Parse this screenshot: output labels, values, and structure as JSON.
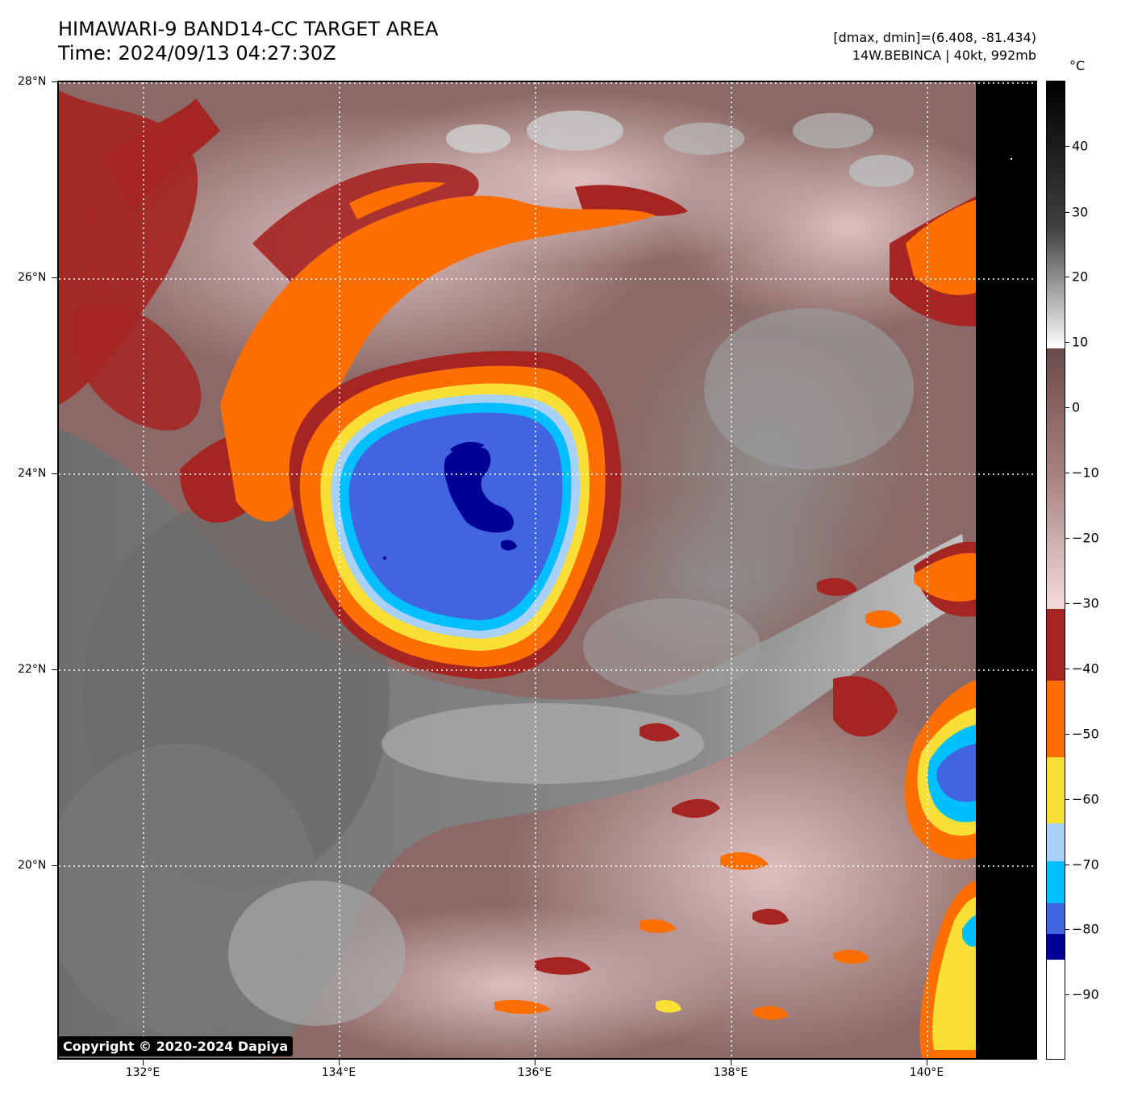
{
  "header": {
    "title_line1": "HIMAWARI-9 BAND14-CC TARGET AREA",
    "title_line2": "Time: 2024/09/13 04:27:30Z",
    "info_line1": "[dmax, dmin]=(6.408, -81.434)",
    "info_line2": "14W.BEBINCA | 40kt, 992mb"
  },
  "axes": {
    "lat_labels": [
      "28°N",
      "26°N",
      "24°N",
      "22°N",
      "20°N"
    ],
    "lon_labels": [
      "132°E",
      "134°E",
      "136°E",
      "138°E",
      "140°E"
    ],
    "lat_range": [
      17.8,
      28
    ],
    "lon_range": [
      131.0,
      141.0
    ],
    "grid": "dotted white"
  },
  "colorbar": {
    "unit": "°C",
    "tick_labels": [
      "40",
      "30",
      "20",
      "10",
      "0",
      "−10",
      "−20",
      "−30",
      "−40",
      "−50",
      "−60",
      "−70",
      "−80",
      "−90"
    ],
    "tick_values": [
      40,
      30,
      20,
      10,
      0,
      -10,
      -20,
      -30,
      -40,
      -50,
      -60,
      -70,
      -80,
      -90
    ],
    "range": [
      -100,
      50
    ],
    "bands": [
      {
        "from": 50,
        "to": 10,
        "colors": [
          "#000000",
          "#ffffff"
        ],
        "kind": "gradient"
      },
      {
        "from": 10,
        "to": -31,
        "colors": [
          "#6a4a48",
          "#f5dcdc"
        ],
        "kind": "gradient"
      },
      {
        "from": -31,
        "to": -42,
        "color": "#a52522"
      },
      {
        "from": -42,
        "to": -54,
        "color": "#ff6e00"
      },
      {
        "from": -54,
        "to": -64,
        "color": "#f9df36"
      },
      {
        "from": -64,
        "to": -70,
        "color": "#a8d0f8"
      },
      {
        "from": -70,
        "to": -76,
        "color": "#00bfff"
      },
      {
        "from": -76,
        "to": -81,
        "color": "#4165e1"
      },
      {
        "from": -81,
        "to": -85,
        "color": "#000096"
      },
      {
        "from": -85,
        "to": -100,
        "color": "#ffffff"
      }
    ]
  },
  "copyright": "Copyright © 2020-2024 Dapiya"
}
